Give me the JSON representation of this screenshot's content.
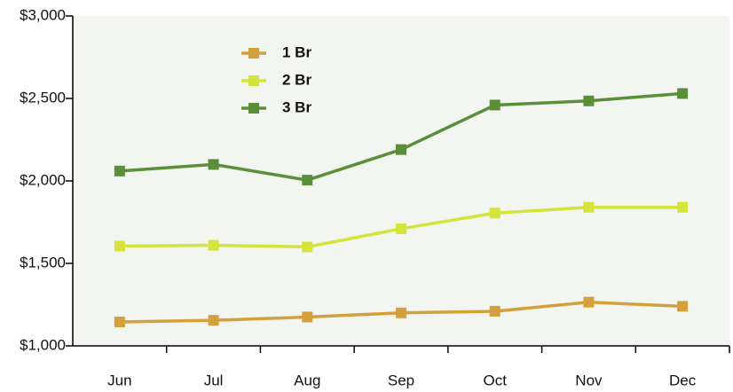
{
  "chart_data": {
    "type": "line",
    "categories": [
      "Jun",
      "Jul",
      "Aug",
      "Sep",
      "Oct",
      "Nov",
      "Dec"
    ],
    "series": [
      {
        "name": "1 Br",
        "color": "#d4a03c",
        "values": [
          1145,
          1155,
          1175,
          1200,
          1210,
          1265,
          1240
        ]
      },
      {
        "name": "2 Br",
        "color": "#d4e43a",
        "values": [
          1605,
          1610,
          1600,
          1710,
          1805,
          1840,
          1840
        ]
      },
      {
        "name": "3 Br",
        "color": "#5a8f3a",
        "values": [
          2060,
          2100,
          2005,
          2190,
          2460,
          2485,
          2530
        ]
      }
    ],
    "ylim": [
      1000,
      3000
    ],
    "yticks": [
      {
        "value": 1000,
        "label": "$1,000"
      },
      {
        "value": 1500,
        "label": "$1,500"
      },
      {
        "value": 2000,
        "label": "$2,000"
      },
      {
        "value": 2500,
        "label": "$2,500"
      },
      {
        "value": 3000,
        "label": "$3,000"
      }
    ],
    "grid": false,
    "legend": "upper-left"
  }
}
